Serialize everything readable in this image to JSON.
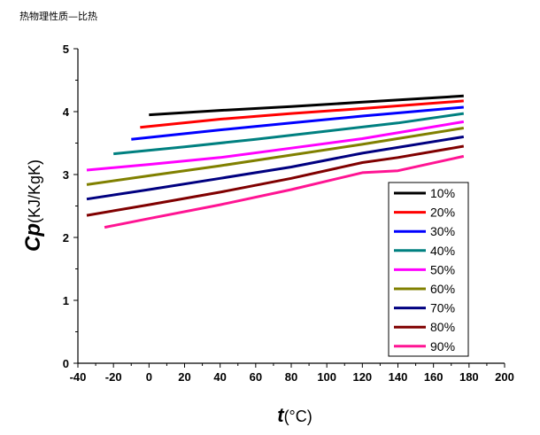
{
  "page": {
    "title": "热物理性质—比热"
  },
  "chart_data": {
    "type": "line",
    "xlabel_main": "t",
    "xlabel_unit": "(°C)",
    "ylabel_main": "Cp",
    "ylabel_unit": "(KJ/KgK)",
    "xlim": [
      -40,
      200
    ],
    "ylim": [
      0,
      5
    ],
    "xticks": [
      -40,
      -20,
      0,
      20,
      40,
      60,
      80,
      100,
      120,
      140,
      160,
      180,
      200
    ],
    "yticks": [
      0,
      1,
      2,
      3,
      4,
      5
    ],
    "legend_position": "lower-right",
    "series": [
      {
        "name": "10%",
        "color": "#000000",
        "x": [
          0,
          40,
          80,
          120,
          177
        ],
        "y": [
          3.95,
          4.02,
          4.08,
          4.15,
          4.25
        ]
      },
      {
        "name": "20%",
        "color": "#ff0000",
        "x": [
          -5,
          40,
          80,
          120,
          177
        ],
        "y": [
          3.75,
          3.88,
          3.97,
          4.05,
          4.17
        ]
      },
      {
        "name": "30%",
        "color": "#0000ff",
        "x": [
          -10,
          40,
          80,
          120,
          177
        ],
        "y": [
          3.56,
          3.71,
          3.82,
          3.93,
          4.07
        ]
      },
      {
        "name": "40%",
        "color": "#008080",
        "x": [
          -20,
          20,
          60,
          100,
          140,
          177
        ],
        "y": [
          3.33,
          3.44,
          3.56,
          3.69,
          3.82,
          3.97
        ]
      },
      {
        "name": "50%",
        "color": "#ff00ff",
        "x": [
          -35,
          0,
          40,
          80,
          120,
          177
        ],
        "y": [
          3.07,
          3.16,
          3.27,
          3.42,
          3.57,
          3.84
        ]
      },
      {
        "name": "60%",
        "color": "#808000",
        "x": [
          -35,
          0,
          40,
          80,
          120,
          177
        ],
        "y": [
          2.84,
          2.98,
          3.14,
          3.31,
          3.48,
          3.74
        ]
      },
      {
        "name": "70%",
        "color": "#000080",
        "x": [
          -35,
          0,
          40,
          80,
          120,
          177
        ],
        "y": [
          2.61,
          2.76,
          2.94,
          3.12,
          3.34,
          3.6
        ]
      },
      {
        "name": "80%",
        "color": "#800000",
        "x": [
          -35,
          0,
          40,
          80,
          120,
          140,
          177
        ],
        "y": [
          2.35,
          2.52,
          2.72,
          2.94,
          3.19,
          3.27,
          3.45
        ]
      },
      {
        "name": "90%",
        "color": "#ff1493",
        "x": [
          -25,
          0,
          40,
          80,
          120,
          140,
          177
        ],
        "y": [
          2.16,
          2.3,
          2.52,
          2.76,
          3.03,
          3.06,
          3.29
        ]
      }
    ]
  }
}
